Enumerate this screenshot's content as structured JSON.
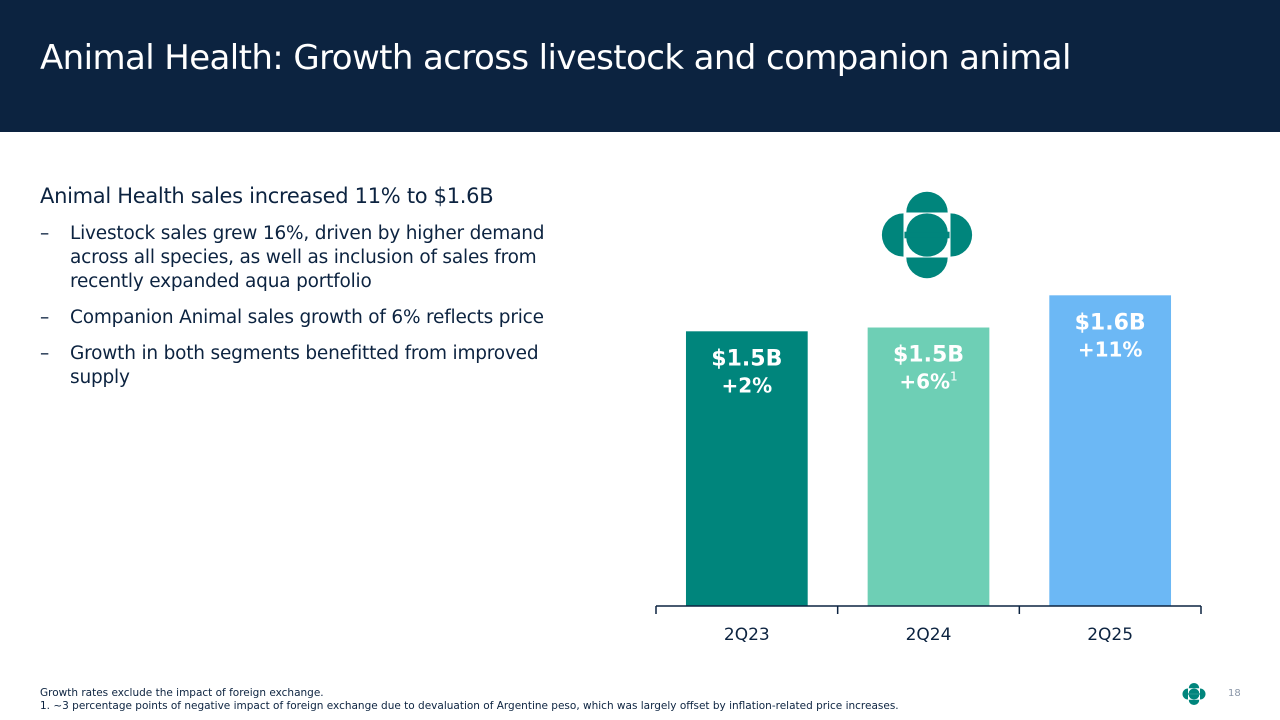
{
  "slide": {
    "title": "Animal Health: Growth across livestock and companion animal",
    "headline": "Animal Health sales increased 11% to $1.6B",
    "bullets": [
      "Livestock sales grew 16%, driven by higher demand across all species, as well as inclusion of sales from recently expanded aqua portfolio",
      "Companion Animal sales growth of 6% reflects price",
      "Growth in both segments benefitted from improved supply"
    ],
    "bullet_marker": "–",
    "footnote_1": "Growth rates exclude the impact of foreign exchange.",
    "footnote_2": "1. ~3 percentage points of negative impact of foreign exchange due to devaluation of Argentine peso, which was largely offset by inflation-related price increases.",
    "page_number": "18"
  },
  "colors": {
    "header_bg": "#0c2340",
    "brand_teal": "#00857c",
    "light_teal": "#6ecfb5",
    "sky_blue": "#6cb8f5"
  },
  "logo": {
    "icon": "brand-logo-icon"
  },
  "chart_data": {
    "type": "bar",
    "categories": [
      "2Q23",
      "2Q24",
      "2Q25"
    ],
    "values": [
      1.45,
      1.47,
      1.64
    ],
    "value_labels": [
      "$1.5B",
      "$1.5B",
      "$1.6B"
    ],
    "growth_labels": [
      "+2%",
      "+6%",
      "+11%"
    ],
    "growth_superscripts": [
      "",
      "1",
      ""
    ],
    "colors": [
      "#00857c",
      "#6ecfb5",
      "#6cb8f5"
    ],
    "ylim": [
      0,
      1.8
    ],
    "grid": false,
    "legend": "none"
  }
}
